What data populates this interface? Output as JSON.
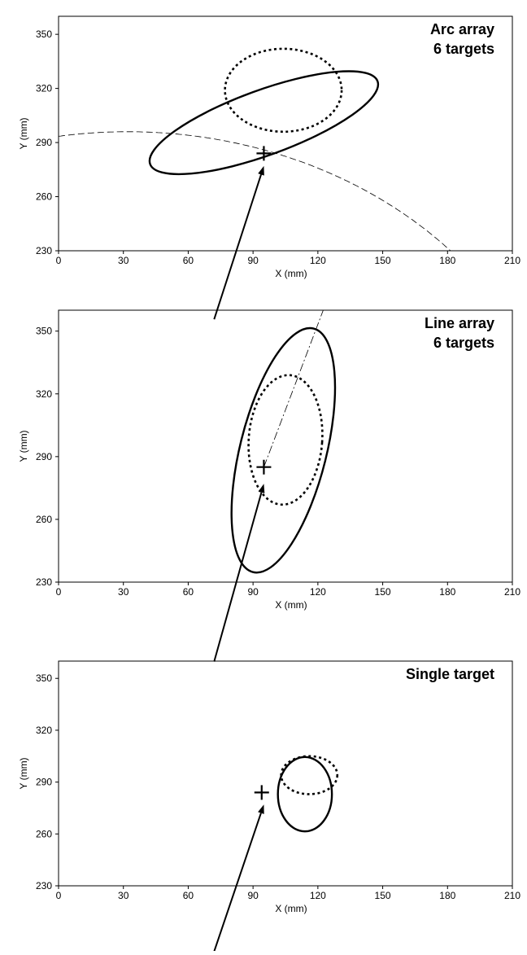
{
  "chart_data": [
    {
      "type": "scatter",
      "annotation": [
        "Arc array",
        "6 targets"
      ],
      "xlabel": "X (mm)",
      "ylabel": "Y (mm)",
      "xlim": [
        0,
        210
      ],
      "ylim": [
        230,
        360
      ],
      "xticks": [
        0,
        30,
        60,
        90,
        120,
        150,
        180,
        210
      ],
      "yticks": [
        230,
        260,
        290,
        320,
        350
      ],
      "target_marker": {
        "x": 95,
        "y": 284
      },
      "ellipse_solid": {
        "cx": 95,
        "cy": 301,
        "rx": 56,
        "ry": 18,
        "angle_deg": -20
      },
      "ellipse_dotted": {
        "cx": 104,
        "cy": 319,
        "rx": 27,
        "ry": 23,
        "angle_deg": 0
      },
      "arc_center": [
        32,
        94
      ],
      "arc_radius": 202,
      "arrow": {
        "from": [
          72,
          192
        ],
        "to": [
          95,
          277
        ]
      }
    },
    {
      "type": "scatter",
      "annotation": [
        "Line array",
        "6 targets"
      ],
      "xlabel": "X (mm)",
      "ylabel": "Y (mm)",
      "xlim": [
        0,
        210
      ],
      "ylim": [
        230,
        360
      ],
      "xticks": [
        0,
        30,
        60,
        90,
        120,
        150,
        180,
        210
      ],
      "yticks": [
        230,
        260,
        290,
        320,
        350
      ],
      "target_marker": {
        "x": 95,
        "y": 285
      },
      "ellipse_solid": {
        "cx": 104,
        "cy": 293,
        "rx": 20,
        "ry": 60,
        "angle_deg": 14
      },
      "ellipse_dotted": {
        "cx": 105,
        "cy": 298,
        "rx": 17,
        "ry": 31,
        "angle_deg": 4
      },
      "line": {
        "from": [
          95,
          285
        ],
        "to": [
          132,
          386
        ]
      },
      "arrow": {
        "from": [
          72,
          192
        ],
        "to": [
          95,
          277
        ]
      }
    },
    {
      "type": "scatter",
      "annotation": [
        "Single target"
      ],
      "xlabel": "X (mm)",
      "ylabel": "Y (mm)",
      "xlim": [
        0,
        210
      ],
      "ylim": [
        230,
        360
      ],
      "xticks": [
        0,
        30,
        60,
        90,
        120,
        150,
        180,
        210
      ],
      "yticks": [
        230,
        260,
        290,
        320,
        350
      ],
      "target_marker": {
        "x": 94,
        "y": 284
      },
      "ellipse_solid": {
        "cx": 114,
        "cy": 283,
        "rx": 12.5,
        "ry": 21.5,
        "angle_deg": 0
      },
      "ellipse_dotted": {
        "cx": 116,
        "cy": 294,
        "rx": 13,
        "ry": 11,
        "angle_deg": 0
      },
      "arrow": {
        "from": [
          72,
          192
        ],
        "to": [
          95,
          277
        ]
      }
    }
  ]
}
